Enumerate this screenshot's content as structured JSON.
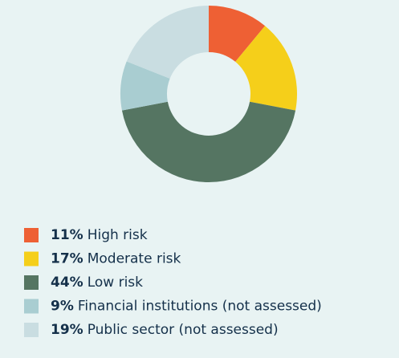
{
  "chart_data": {
    "type": "pie",
    "categories": [
      "High risk",
      "Moderate risk",
      "Low risk",
      "Financial institutions (not assessed)",
      "Public sector (not assessed)"
    ],
    "values": [
      11,
      17,
      44,
      9,
      19
    ],
    "value_labels": [
      "11%",
      "17%",
      "44%",
      "9%",
      "19%"
    ],
    "colors": [
      "#ee6034",
      "#f5cf1a",
      "#557562",
      "#a9cdd1",
      "#c9dde1"
    ],
    "donut": true
  }
}
